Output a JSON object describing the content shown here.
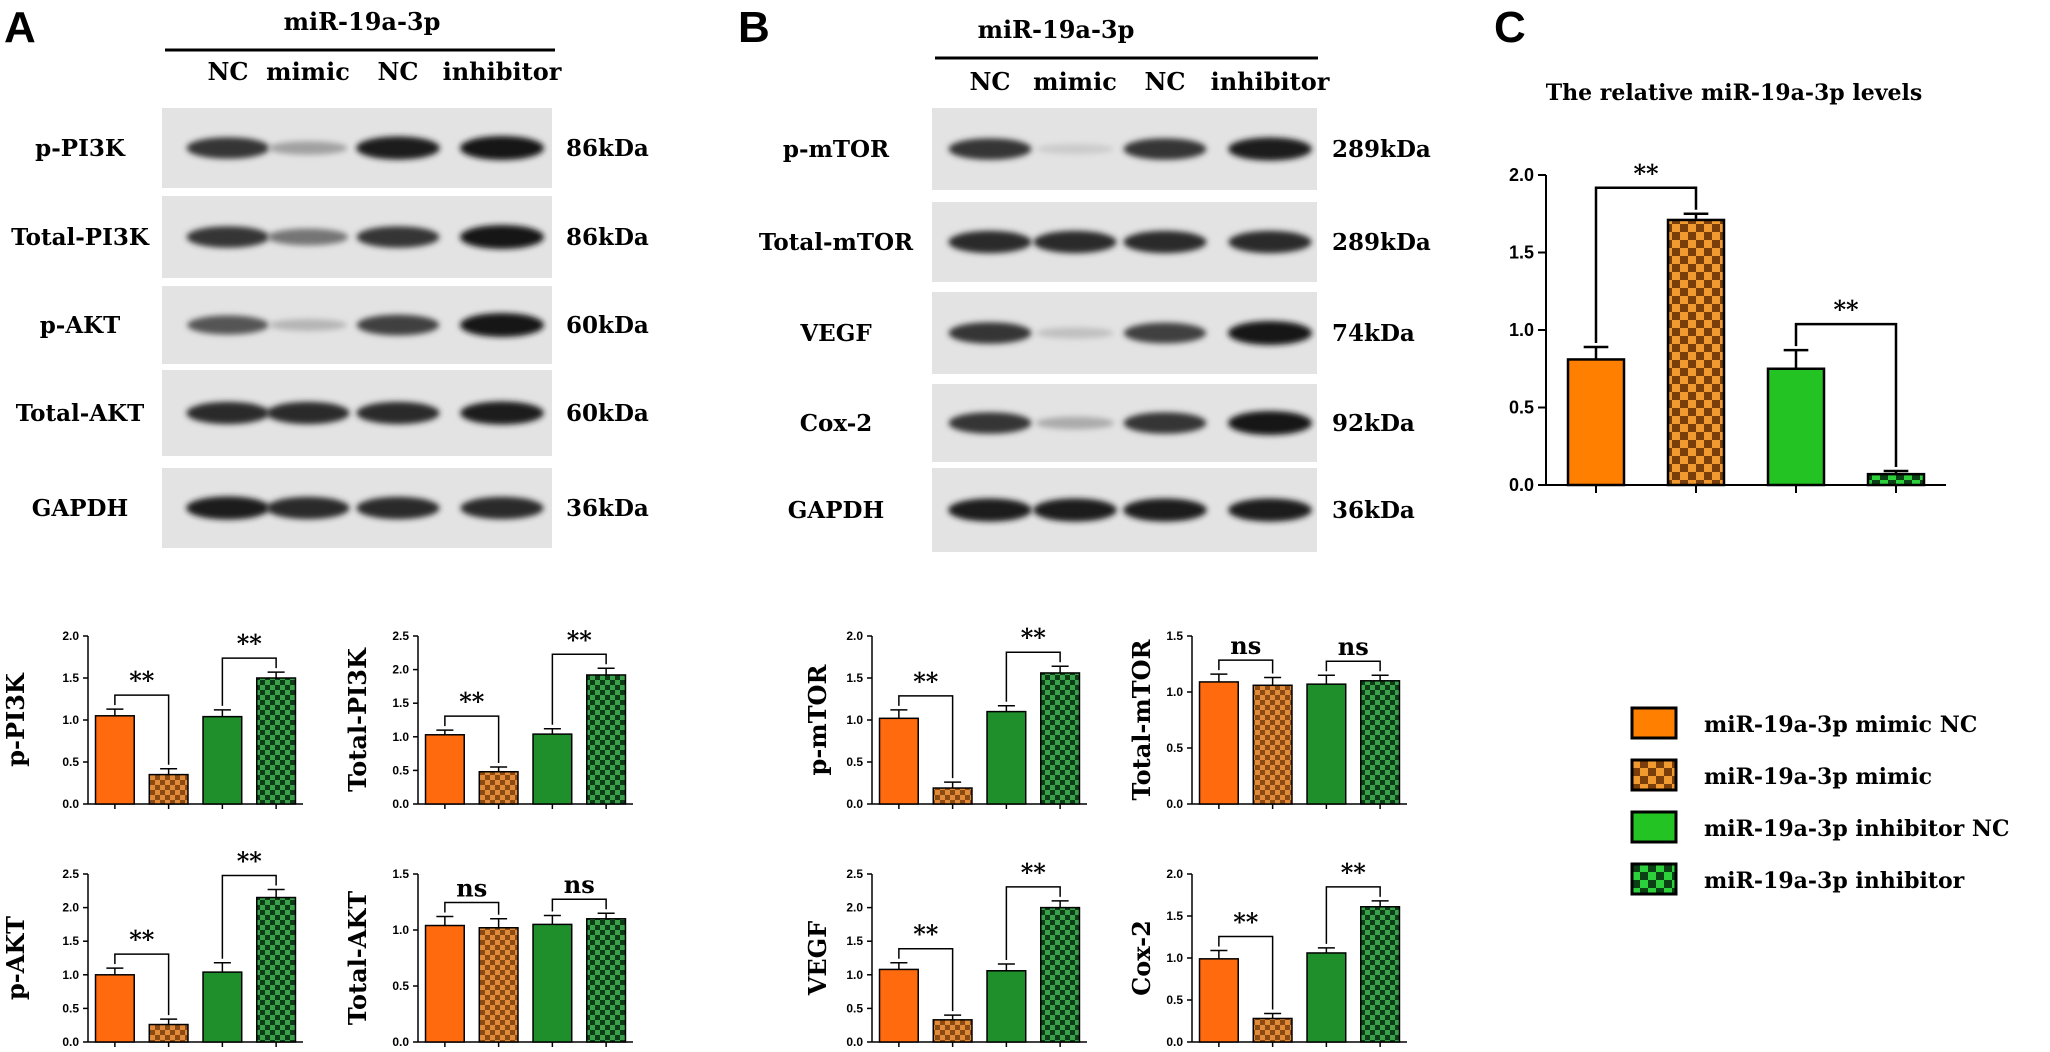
{
  "colors": {
    "mimic_nc": "#ff7f00",
    "mimic_nc_small": "#ff6a0f",
    "mimic": "#d27a2c",
    "inhibitor_nc": "#23c323",
    "inhibitor_nc_small": "#1f8f2c",
    "inhibitor": "#2a8a3a",
    "axis": "#000000"
  },
  "panels": {
    "A": {
      "letter": "A",
      "group_title": "miR-19a-3p",
      "lanes": [
        "NC",
        "mimic",
        "NC",
        "inhibitor"
      ],
      "blots": [
        {
          "label": "p-PI3K",
          "kda": "86kDa",
          "intensity": [
            0.85,
            0.35,
            0.95,
            1.0
          ]
        },
        {
          "label": "Total-PI3K",
          "kda": "86kDa",
          "intensity": [
            0.85,
            0.55,
            0.85,
            1.0
          ]
        },
        {
          "label": "p-AKT",
          "kda": "60kDa",
          "intensity": [
            0.7,
            0.25,
            0.8,
            1.0
          ]
        },
        {
          "label": "Total-AKT",
          "kda": "60kDa",
          "intensity": [
            0.9,
            0.9,
            0.9,
            0.95
          ]
        },
        {
          "label": "GAPDH",
          "kda": "36kDa",
          "intensity": [
            0.95,
            0.9,
            0.9,
            0.9
          ]
        }
      ]
    },
    "B": {
      "letter": "B",
      "group_title": "miR-19a-3p",
      "lanes": [
        "NC",
        "mimic",
        "NC",
        "inhibitor"
      ],
      "blots": [
        {
          "label": "p-mTOR",
          "kda": "289kDa",
          "intensity": [
            0.85,
            0.15,
            0.85,
            0.95
          ]
        },
        {
          "label": "Total-mTOR",
          "kda": "289kDa",
          "intensity": [
            0.9,
            0.9,
            0.9,
            0.9
          ]
        },
        {
          "label": "VEGF",
          "kda": "74kDa",
          "intensity": [
            0.85,
            0.2,
            0.8,
            1.0
          ]
        },
        {
          "label": "Cox-2",
          "kda": "92kDa",
          "intensity": [
            0.85,
            0.3,
            0.85,
            1.0
          ]
        },
        {
          "label": "GAPDH",
          "kda": "36kDa",
          "intensity": [
            0.95,
            0.95,
            0.95,
            0.95
          ]
        }
      ]
    },
    "C": {
      "letter": "C"
    }
  },
  "chart_data": [
    {
      "id": "p-PI3K",
      "type": "bar",
      "ylabel": "p-PI3K",
      "ylim": [
        0,
        2.0
      ],
      "yticks": [
        "0.0",
        "0.5",
        "1.0",
        "1.5",
        "2.0"
      ],
      "values": [
        1.05,
        0.35,
        1.04,
        1.5
      ],
      "errors": [
        0.08,
        0.07,
        0.08,
        0.07
      ],
      "sig": [
        "**",
        "**"
      ]
    },
    {
      "id": "Total-PI3K",
      "type": "bar",
      "ylabel": "Total-PI3K",
      "ylim": [
        0,
        2.5
      ],
      "yticks": [
        "0.0",
        "0.5",
        "1.0",
        "1.5",
        "2.0",
        "2.5"
      ],
      "values": [
        1.03,
        0.48,
        1.04,
        1.92
      ],
      "errors": [
        0.07,
        0.07,
        0.08,
        0.1
      ],
      "sig": [
        "**",
        "**"
      ]
    },
    {
      "id": "p-AKT",
      "type": "bar",
      "ylabel": "p-AKT",
      "ylim": [
        0,
        2.5
      ],
      "yticks": [
        "0.0",
        "0.5",
        "1.0",
        "1.5",
        "2.0",
        "2.5"
      ],
      "values": [
        1.0,
        0.26,
        1.04,
        2.15
      ],
      "errors": [
        0.1,
        0.08,
        0.14,
        0.12
      ],
      "sig": [
        "**",
        "**"
      ]
    },
    {
      "id": "Total-AKT",
      "type": "bar",
      "ylabel": "Total-AKT",
      "ylim": [
        0,
        1.5
      ],
      "yticks": [
        "0.0",
        "0.5",
        "1.0",
        "1.5"
      ],
      "values": [
        1.04,
        1.02,
        1.05,
        1.1
      ],
      "errors": [
        0.08,
        0.08,
        0.08,
        0.05
      ],
      "sig": [
        "ns",
        "ns"
      ]
    },
    {
      "id": "p-mTOR",
      "type": "bar",
      "ylabel": "p-mTOR",
      "ylim": [
        0,
        2.0
      ],
      "yticks": [
        "0.0",
        "0.5",
        "1.0",
        "1.5",
        "2.0"
      ],
      "values": [
        1.02,
        0.19,
        1.1,
        1.56
      ],
      "errors": [
        0.1,
        0.07,
        0.07,
        0.08
      ],
      "sig": [
        "**",
        "**"
      ]
    },
    {
      "id": "Total-mTOR",
      "type": "bar",
      "ylabel": "Total-mTOR",
      "ylim": [
        0,
        1.5
      ],
      "yticks": [
        "0.0",
        "0.5",
        "1.0",
        "1.5"
      ],
      "values": [
        1.09,
        1.06,
        1.07,
        1.1
      ],
      "errors": [
        0.07,
        0.07,
        0.08,
        0.05
      ],
      "sig": [
        "ns",
        "ns"
      ]
    },
    {
      "id": "VEGF",
      "type": "bar",
      "ylabel": "VEGF",
      "ylim": [
        0,
        2.5
      ],
      "yticks": [
        "0.0",
        "0.5",
        "1.0",
        "1.5",
        "2.0",
        "2.5"
      ],
      "values": [
        1.08,
        0.33,
        1.06,
        2.0
      ],
      "errors": [
        0.1,
        0.07,
        0.1,
        0.1
      ],
      "sig": [
        "**",
        "**"
      ]
    },
    {
      "id": "Cox-2",
      "type": "bar",
      "ylabel": "Cox-2",
      "ylim": [
        0,
        2.0
      ],
      "yticks": [
        "0.0",
        "0.5",
        "1.0",
        "1.5",
        "2.0"
      ],
      "values": [
        0.99,
        0.28,
        1.06,
        1.61
      ],
      "errors": [
        0.1,
        0.06,
        0.06,
        0.07
      ],
      "sig": [
        "**",
        "**"
      ]
    },
    {
      "id": "relative-levels",
      "type": "bar",
      "title": "The relative miR-19a-3p levels",
      "ylim": [
        0,
        2.0
      ],
      "yticks": [
        "0.0",
        "0.5",
        "1.0",
        "1.5",
        "2.0"
      ],
      "categories": [
        "miR-19a-3p mimic NC",
        "miR-19a-3p mimic",
        "miR-19a-3p inhibitor NC",
        "miR-19a-3p inhibitor"
      ],
      "values": [
        0.81,
        1.71,
        0.75,
        0.07
      ],
      "errors": [
        0.08,
        0.04,
        0.12,
        0.02
      ],
      "sig": [
        "**",
        "**"
      ]
    }
  ],
  "legend": {
    "position": "right",
    "items": [
      {
        "label": "miR-19a-3p mimic NC",
        "pattern": "solid-orange"
      },
      {
        "label": "miR-19a-3p mimic",
        "pattern": "checker-orange"
      },
      {
        "label": "miR-19a-3p inhibitor NC",
        "pattern": "solid-green"
      },
      {
        "label": "miR-19a-3p inhibitor",
        "pattern": "checker-green"
      }
    ]
  }
}
